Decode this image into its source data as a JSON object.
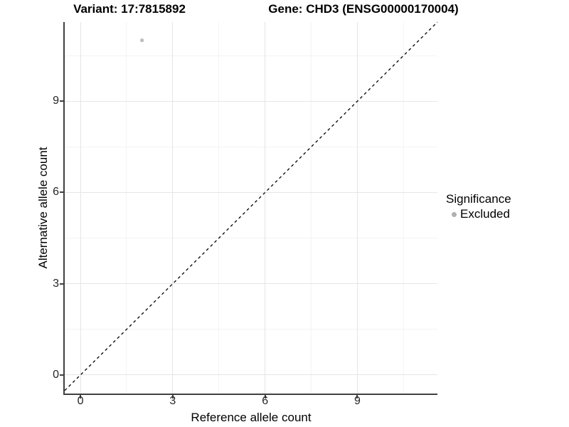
{
  "titles": {
    "variant": "Variant: 17:7815892",
    "gene": "Gene: CHD3 (ENSG00000170004)"
  },
  "legend": {
    "title": "Significance",
    "items": [
      {
        "label": "Excluded",
        "color": "#b0b0b0"
      }
    ]
  },
  "chart_data": {
    "type": "scatter",
    "title": "Variant: 17:7815892 | Gene: CHD3 (ENSG00000170004)",
    "xlabel": "Reference allele count",
    "ylabel": "Alternative allele count",
    "series": [
      {
        "name": "Excluded",
        "color": "#bdbdbd",
        "points": [
          {
            "x": 2,
            "y": 11
          }
        ]
      }
    ],
    "reference_line": {
      "type": "identity",
      "slope": 1,
      "intercept": 0,
      "style": "dashed",
      "color": "#000000"
    },
    "xlim": [
      -0.51,
      11.6
    ],
    "ylim": [
      -0.61,
      11.6
    ],
    "x_ticks": [
      0,
      3,
      6,
      9
    ],
    "y_ticks": [
      0,
      3,
      6,
      9
    ],
    "x_minor_ticks": [
      1.5,
      4.5,
      7.5,
      10.5
    ],
    "y_minor_ticks": [
      1.5,
      4.5,
      7.5,
      10.5
    ],
    "grid": true,
    "legend_position": "right",
    "colors": {
      "axis_line": "#404040",
      "major_grid": "#e5e5e5",
      "minor_grid": "#f4f4f4",
      "point": "#bdbdbd"
    }
  }
}
